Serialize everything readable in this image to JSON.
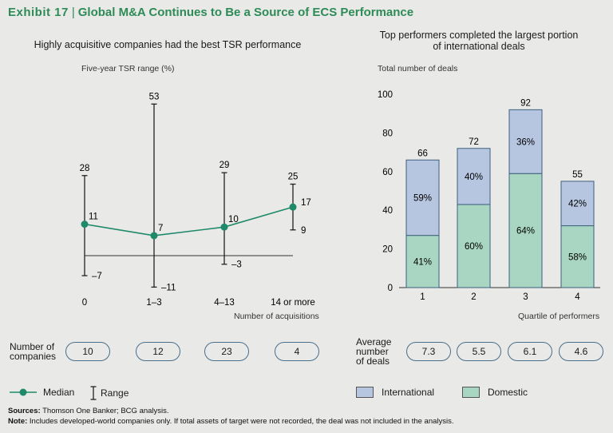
{
  "header": {
    "exhibit": "Exhibit 17",
    "separator": "|",
    "title": "Global M&A Continues to Be a Source of ECS Performance"
  },
  "colors": {
    "accent": "#2e8b57",
    "median_line": "#1e8a6a",
    "international": "#b7c6e0",
    "domestic": "#a9d6c3",
    "oval_border": "#4a6f8a"
  },
  "chart_data": [
    {
      "type": "line",
      "subtitle": "Highly acquisitive companies had the best TSR performance",
      "ylabel": "Five-year TSR range (%)",
      "xlabel": "Number of acquisitions",
      "categories": [
        "0",
        "1–3",
        "4–13",
        "14 or more"
      ],
      "median": [
        11,
        7,
        10,
        17
      ],
      "range_high": [
        28,
        53,
        29,
        25
      ],
      "range_low": [
        -7,
        -11,
        -3,
        9
      ],
      "high_labels": [
        "28",
        "53",
        "29",
        "25"
      ],
      "low_labels": [
        "–7",
        "–11",
        "–3",
        "9"
      ],
      "median_labels": [
        "11",
        "7",
        "10",
        "17"
      ],
      "ylim": [
        -11,
        53
      ]
    },
    {
      "type": "bar",
      "subtitle_line1": "Top performers completed the largest portion",
      "subtitle_line2": "of international deals",
      "ylabel": "Total number of deals",
      "xlabel": "Quartile of performers",
      "categories": [
        "1",
        "2",
        "3",
        "4"
      ],
      "totals": [
        66,
        72,
        92,
        55
      ],
      "total_labels": [
        "66",
        "72",
        "92",
        "55"
      ],
      "domestic_values": [
        27,
        43,
        59,
        32
      ],
      "international_values": [
        39,
        29,
        33,
        23
      ],
      "domestic_labels": [
        "41%",
        "60%",
        "64%",
        "58%"
      ],
      "international_labels": [
        "59%",
        "40%",
        "36%",
        "42%"
      ],
      "yticks": [
        "0",
        "20",
        "40",
        "60",
        "80",
        "100"
      ],
      "ylim": [
        0,
        100
      ]
    }
  ],
  "companies": {
    "label_line1": "Number of",
    "label_line2": "companies",
    "values": [
      "10",
      "12",
      "23",
      "4"
    ]
  },
  "deals": {
    "label_line1": "Average",
    "label_line2": "number",
    "label_line3": "of deals",
    "values": [
      "7.3",
      "5.5",
      "6.1",
      "4.6"
    ]
  },
  "legend": {
    "median": "Median",
    "range": "Range",
    "international": "International",
    "domestic": "Domestic"
  },
  "footer": {
    "sources_label": "Sources:",
    "sources_text": " Thomson One Banker; BCG analysis.",
    "note_label": "Note:",
    "note_text": " Includes developed-world companies only. If total assets of target were not recorded, the deal was not included in the analysis."
  }
}
